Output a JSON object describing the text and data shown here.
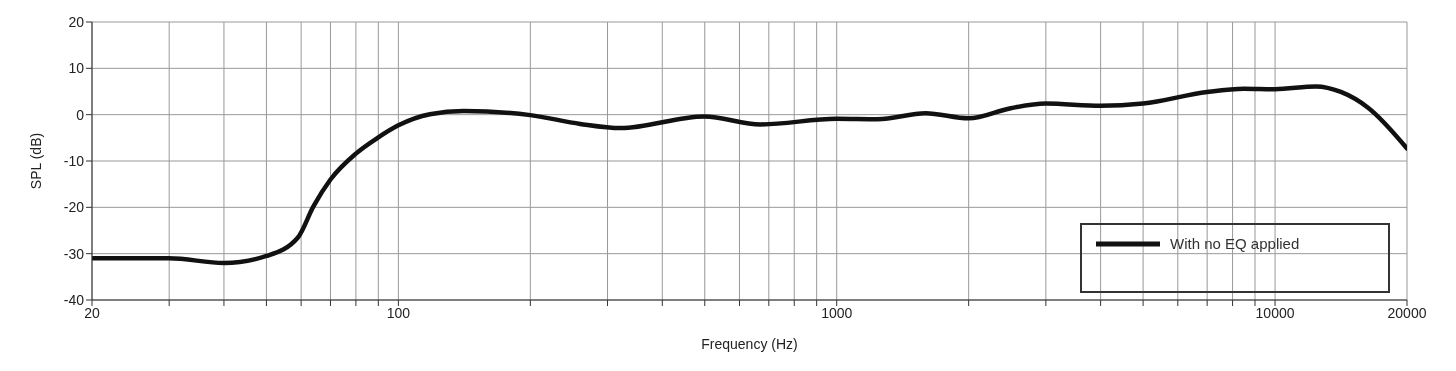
{
  "chart_data": {
    "type": "line",
    "xlabel": "Frequency (Hz)",
    "ylabel": "SPL (dB)",
    "log": "x",
    "grid": true,
    "legend": "bottom right",
    "marker": "none",
    "line_style": "solid",
    "xlim": [
      20,
      20000
    ],
    "ylim": [
      -40,
      20
    ],
    "xticks": [
      20,
      {
        "value": 30,
        "label": null
      },
      {
        "value": 40,
        "label": null
      },
      {
        "value": 50,
        "label": null
      },
      {
        "value": 60,
        "label": null
      },
      {
        "value": 70,
        "label": null
      },
      {
        "value": 80,
        "label": null
      },
      {
        "value": 90,
        "label": null
      },
      100,
      {
        "value": 200,
        "label": null
      },
      {
        "value": 300,
        "label": null
      },
      {
        "value": 400,
        "label": null
      },
      {
        "value": 500,
        "label": null
      },
      {
        "value": 600,
        "label": null
      },
      {
        "value": 700,
        "label": null
      },
      {
        "value": 800,
        "label": null
      },
      {
        "value": 900,
        "label": null
      },
      1000,
      {
        "value": 2000,
        "label": null
      },
      {
        "value": 3000,
        "label": null
      },
      {
        "value": 4000,
        "label": null
      },
      {
        "value": 5000,
        "label": null
      },
      {
        "value": 6000,
        "label": null
      },
      {
        "value": 7000,
        "label": null
      },
      {
        "value": 8000,
        "label": null
      },
      {
        "value": 9000,
        "label": null
      },
      10000,
      20000
    ],
    "yticks": [
      -40,
      -30,
      -20,
      -10,
      0,
      10,
      20
    ],
    "x": [
      20,
      30,
      40,
      50,
      59,
      64,
      70,
      80,
      90,
      100,
      118,
      141,
      200,
      260,
      321,
      499,
      670,
      1000,
      1240,
      1595,
      2000,
      2494,
      3000,
      4000,
      5000,
      7000,
      8500,
      10000,
      12400,
      14130,
      16300,
      20000
    ],
    "series": [
      {
        "name": "With no EQ applied",
        "color": "#111111",
        "values": [
          -31.0,
          -31.0,
          -32.0,
          -30.5,
          -26.5,
          -19.8,
          -14.0,
          -8.4,
          -4.9,
          -2.3,
          0.1,
          0.8,
          -0.1,
          -2.0,
          -2.9,
          -0.4,
          -2.1,
          -0.9,
          -1.0,
          0.3,
          -0.8,
          1.4,
          2.4,
          1.9,
          2.4,
          4.9,
          5.6,
          5.5,
          6.1,
          4.9,
          1.5,
          -7.3
        ]
      }
    ]
  }
}
